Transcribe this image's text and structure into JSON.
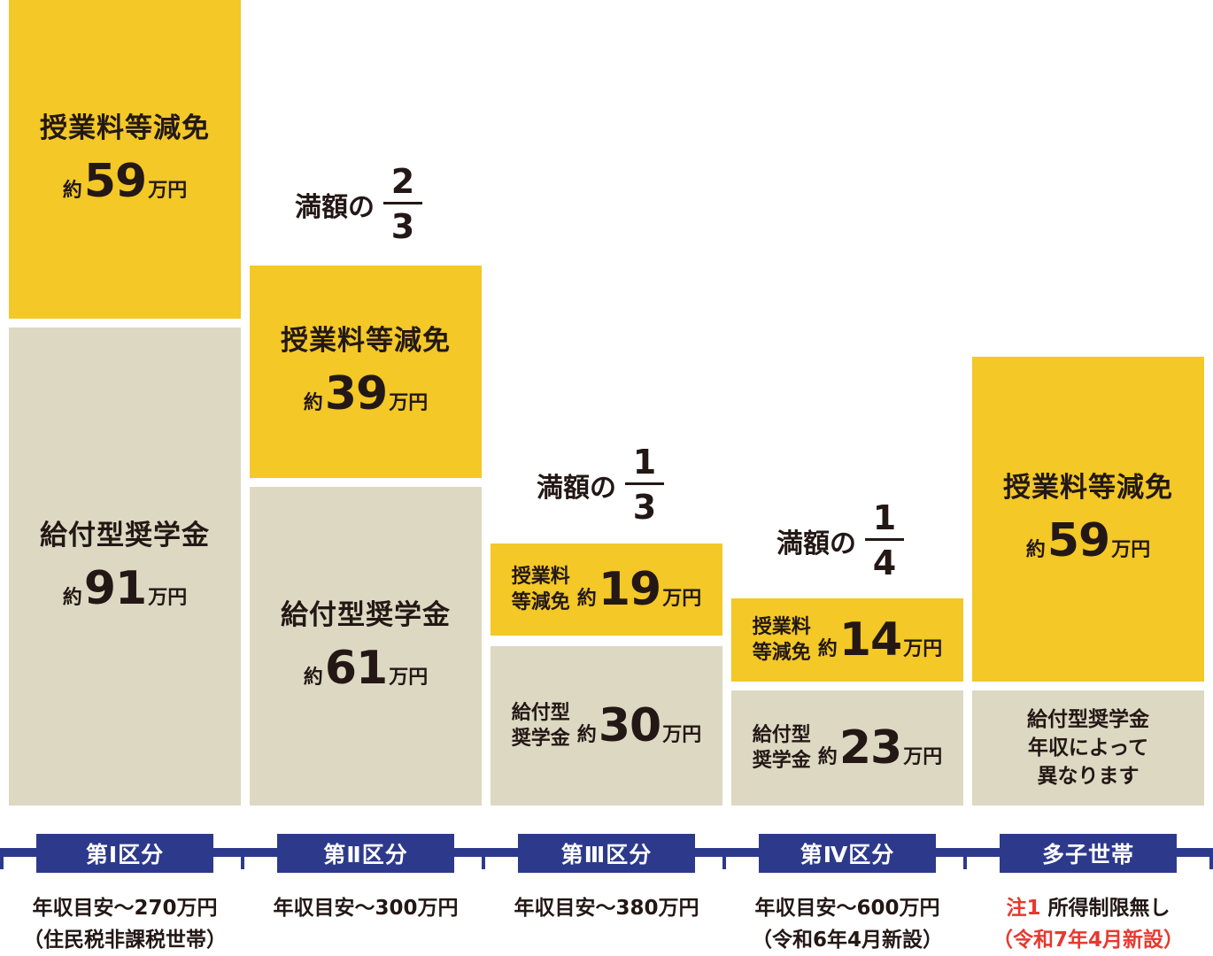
{
  "chart_data": {
    "type": "bar",
    "stacked": true,
    "categories": [
      "第Ⅰ区分",
      "第Ⅱ区分",
      "第Ⅲ区分",
      "第Ⅳ区分",
      "多子世帯"
    ],
    "series": [
      {
        "name": "授業料等減免",
        "color": "#f3c827",
        "values": [
          59,
          39,
          19,
          14,
          59
        ],
        "labels": [
          "授業料等減免",
          "授業料等減免",
          "授業料\n等減免",
          "授業料\n等減免",
          "授業料等減免"
        ]
      },
      {
        "name": "給付型奨学金",
        "color": "#ddd8c2",
        "values": [
          91,
          61,
          30,
          23,
          null
        ],
        "labels": [
          "給付型奨学金",
          "給付型奨学金",
          "給付型\n奨学金",
          "給付型\n奨学金",
          ""
        ],
        "note_last": "給付型奨学金\n年収によって\n異なります"
      }
    ],
    "value_prefix": "約",
    "value_suffix": "万円",
    "fractions": [
      {
        "label": "満額の",
        "numerator": "2",
        "denominator": "3"
      },
      {
        "label": "満額の",
        "numerator": "1",
        "denominator": "3"
      },
      {
        "label": "満額の",
        "numerator": "1",
        "denominator": "4"
      }
    ],
    "income_labels": [
      {
        "line1": "年収目安〜270万円",
        "line2": "（住民税非課税世帯）"
      },
      {
        "line1": "年収目安〜300万円",
        "line2": ""
      },
      {
        "line1": "年収目安〜380万円",
        "line2": ""
      },
      {
        "line1": "年収目安〜600万円",
        "line2": "（令和6年4月新設）"
      },
      {
        "line1_note": "注1",
        "line1": " 所得制限無し",
        "line2": "（令和7年4月新設）"
      }
    ]
  },
  "colors": {
    "tuition": "#f3c827",
    "scholarship": "#ddd8c2",
    "tab": "#2d3a8c",
    "note": "#e8382f"
  }
}
